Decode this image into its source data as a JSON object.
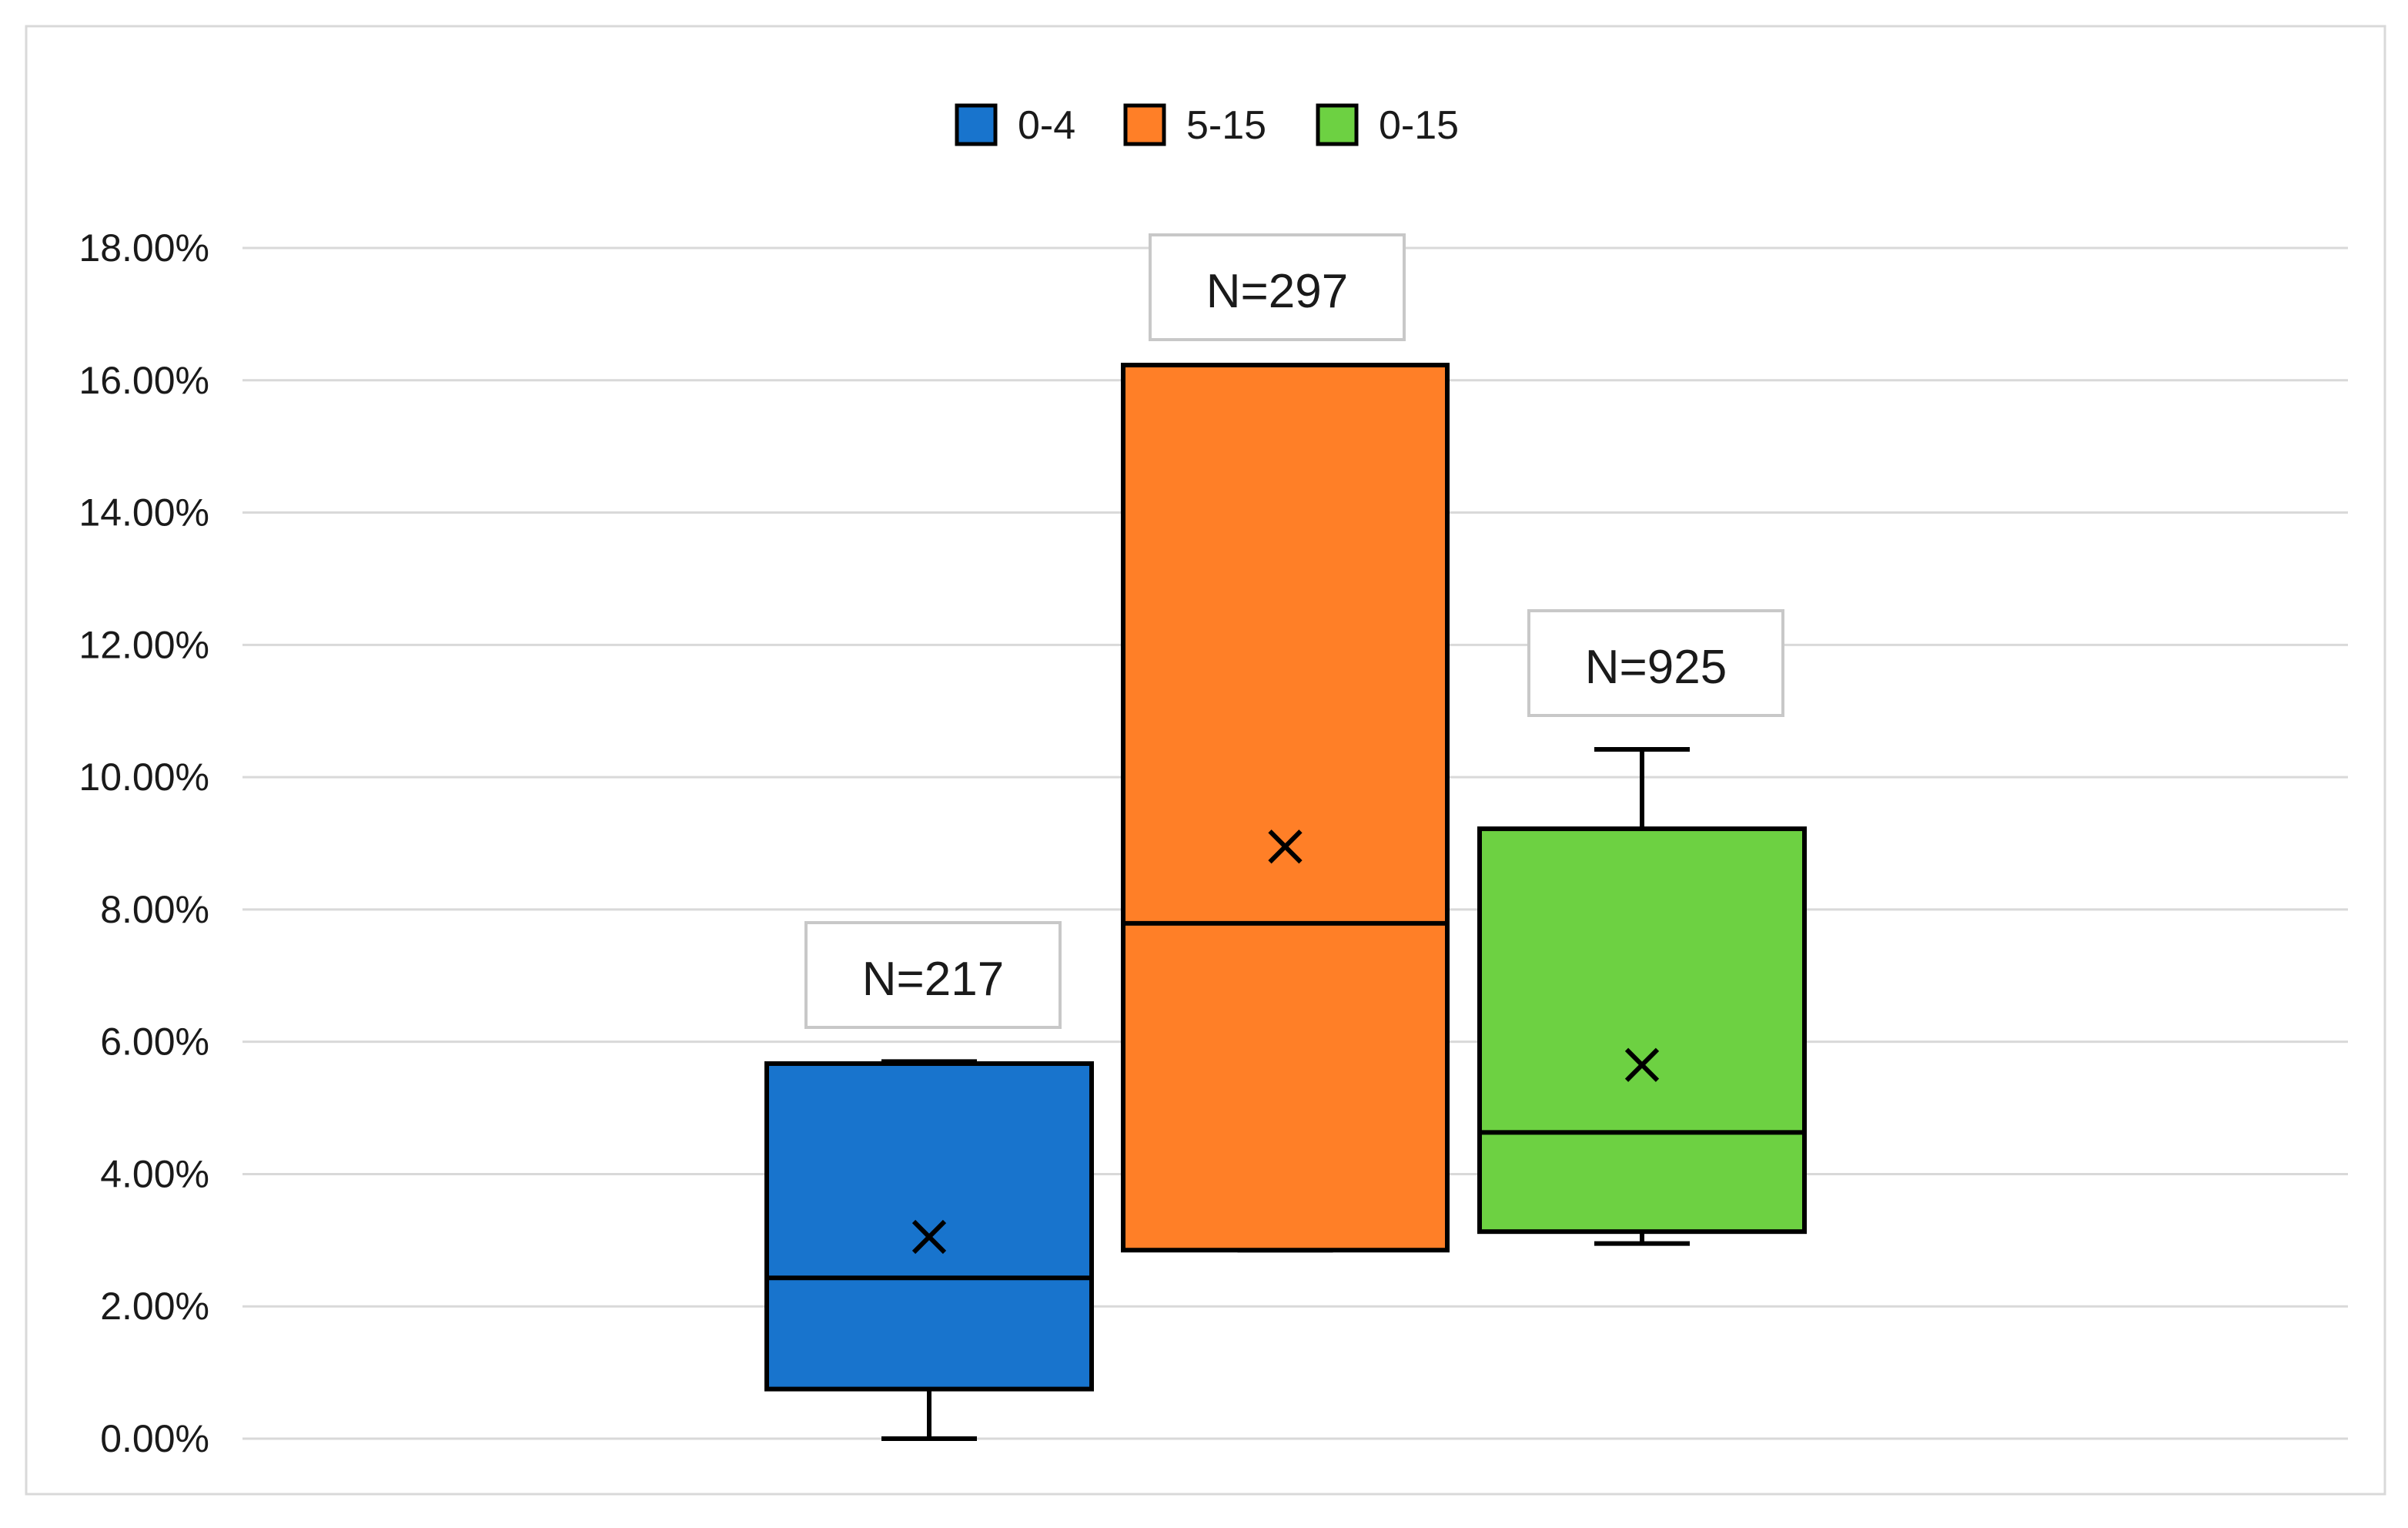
{
  "chart_data": {
    "type": "box",
    "title": "",
    "xlabel": "",
    "ylabel": "",
    "ylim": [
      0,
      0.18
    ],
    "y_ticks": [
      0,
      0.02,
      0.04,
      0.06,
      0.08,
      0.1,
      0.12,
      0.14,
      0.16,
      0.18
    ],
    "y_tick_labels": [
      "0.00%",
      "2.00%",
      "4.00%",
      "6.00%",
      "8.00%",
      "10.00%",
      "12.00%",
      "14.00%",
      "16.00%",
      "18.00%"
    ],
    "grid": true,
    "legend_position": "top",
    "series": [
      {
        "name": "0-4",
        "color": "#1874CD",
        "whisker_low": 0.0,
        "q1": 0.0075,
        "median": 0.0243,
        "q3": 0.0567,
        "whisker_high": 0.057,
        "mean": 0.0305,
        "n_label": "N=217"
      },
      {
        "name": "5-15",
        "color": "#FF7F27",
        "whisker_low": 0.0285,
        "q1": 0.0285,
        "median": 0.0779,
        "q3": 0.1623,
        "whisker_high": 0.1623,
        "mean": 0.0895,
        "n_label": "N=297"
      },
      {
        "name": "0-15",
        "color": "#6DD142",
        "whisker_low": 0.0295,
        "q1": 0.0313,
        "median": 0.0463,
        "q3": 0.0922,
        "whisker_high": 0.1042,
        "mean": 0.0565,
        "n_label": "N=925"
      }
    ]
  }
}
